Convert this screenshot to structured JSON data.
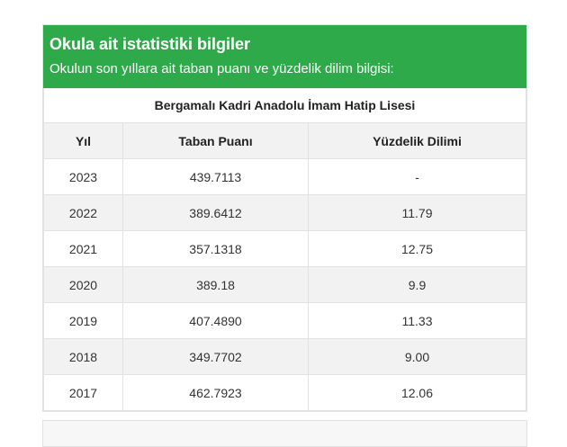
{
  "header": {
    "title": "Okula ait istatistiki bilgiler",
    "subtitle": "Okulun son yıllara ait taban puanı ve yüzdelik dilim bilgisi:"
  },
  "table": {
    "school_name": "Bergamalı Kadri Anadolu İmam Hatip Lisesi",
    "columns": [
      "Yıl",
      "Taban Puanı",
      "Yüzdelik Dilimi"
    ],
    "rows": [
      {
        "year": "2023",
        "score": "439.7113",
        "percentile": "-"
      },
      {
        "year": "2022",
        "score": "389.6412",
        "percentile": "11.79"
      },
      {
        "year": "2021",
        "score": "357.1318",
        "percentile": "12.75"
      },
      {
        "year": "2020",
        "score": "389.18",
        "percentile": "9.9"
      },
      {
        "year": "2019",
        "score": "407.4890",
        "percentile": "11.33"
      },
      {
        "year": "2018",
        "score": "349.7702",
        "percentile": "9.00"
      },
      {
        "year": "2017",
        "score": "462.7923",
        "percentile": "12.06"
      }
    ]
  },
  "colors": {
    "header_bg": "#2eaa4a",
    "stripe_bg": "#f2f2f2",
    "border": "#e2e2e2"
  }
}
